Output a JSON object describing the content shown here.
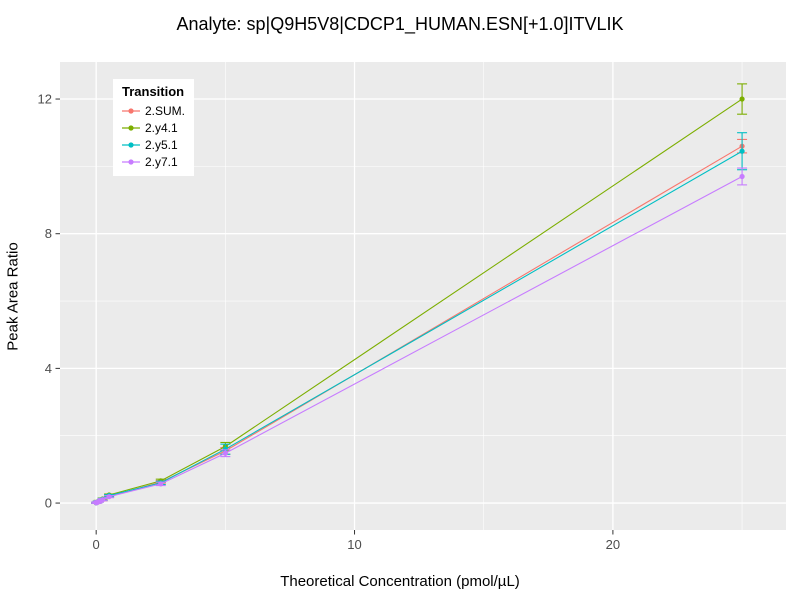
{
  "chart": {
    "title": "Analyte: sp|Q9H5V8|CDCP1_HUMAN.ESN[+1.0]ITVLIK",
    "xlabel": "Theoretical Concentration (pmol/µL)",
    "ylabel": "Peak Area Ratio",
    "legend_title": "Transition"
  },
  "chart_data": {
    "type": "line",
    "title": "Analyte: sp|Q9H5V8|CDCP1_HUMAN.ESN[+1.0]ITVLIK",
    "xlabel": "Theoretical Concentration (pmol/µL)",
    "ylabel": "Peak Area Ratio",
    "legend_title": "Transition",
    "legend_position": "top-left-inside",
    "grid": true,
    "panel_color": "#EBEBEB",
    "grid_color": "#FFFFFF",
    "xlim": [
      -1.4,
      26.7
    ],
    "ylim": [
      -0.8,
      13.1
    ],
    "x_major_ticks": [
      0,
      10,
      20
    ],
    "x_minor_ticks": [
      5,
      15,
      25
    ],
    "y_major_ticks": [
      0,
      4,
      8,
      12
    ],
    "y_minor_ticks": [
      2,
      6,
      10
    ],
    "series": [
      {
        "name": "2.SUM.",
        "color": "#F8766D",
        "points": [
          {
            "x": 0,
            "y": 0.01,
            "err": 0.02
          },
          {
            "x": 0.05,
            "y": 0.03,
            "err": 0.02
          },
          {
            "x": 0.1,
            "y": 0.05,
            "err": 0.02
          },
          {
            "x": 0.25,
            "y": 0.1,
            "err": 0.03
          },
          {
            "x": 0.5,
            "y": 0.2,
            "err": 0.03
          },
          {
            "x": 2.5,
            "y": 0.62,
            "err": 0.05
          },
          {
            "x": 5,
            "y": 1.55,
            "err": 0.1
          },
          {
            "x": 25,
            "y": 10.6,
            "err": 0.2
          }
        ]
      },
      {
        "name": "2.y4.1",
        "color": "#7CAE00",
        "points": [
          {
            "x": 0,
            "y": 0.01,
            "err": 0.02
          },
          {
            "x": 0.05,
            "y": 0.03,
            "err": 0.02
          },
          {
            "x": 0.1,
            "y": 0.06,
            "err": 0.02
          },
          {
            "x": 0.25,
            "y": 0.12,
            "err": 0.03
          },
          {
            "x": 0.5,
            "y": 0.24,
            "err": 0.03
          },
          {
            "x": 2.5,
            "y": 0.66,
            "err": 0.05
          },
          {
            "x": 5,
            "y": 1.68,
            "err": 0.12
          },
          {
            "x": 25,
            "y": 12.0,
            "err": 0.45
          }
        ]
      },
      {
        "name": "2.y5.1",
        "color": "#00BFC4",
        "points": [
          {
            "x": 0,
            "y": 0.01,
            "err": 0.02
          },
          {
            "x": 0.05,
            "y": 0.03,
            "err": 0.02
          },
          {
            "x": 0.1,
            "y": 0.05,
            "err": 0.02
          },
          {
            "x": 0.25,
            "y": 0.11,
            "err": 0.03
          },
          {
            "x": 0.5,
            "y": 0.22,
            "err": 0.03
          },
          {
            "x": 2.5,
            "y": 0.6,
            "err": 0.05
          },
          {
            "x": 5,
            "y": 1.6,
            "err": 0.15
          },
          {
            "x": 25,
            "y": 10.45,
            "err": 0.55
          }
        ]
      },
      {
        "name": "2.y7.1",
        "color": "#C77CFF",
        "points": [
          {
            "x": 0,
            "y": 0.01,
            "err": 0.02
          },
          {
            "x": 0.05,
            "y": 0.02,
            "err": 0.02
          },
          {
            "x": 0.1,
            "y": 0.05,
            "err": 0.02
          },
          {
            "x": 0.25,
            "y": 0.1,
            "err": 0.03
          },
          {
            "x": 0.5,
            "y": 0.19,
            "err": 0.03
          },
          {
            "x": 2.5,
            "y": 0.57,
            "err": 0.05
          },
          {
            "x": 5,
            "y": 1.48,
            "err": 0.1
          },
          {
            "x": 25,
            "y": 9.7,
            "err": 0.25
          }
        ]
      }
    ]
  }
}
